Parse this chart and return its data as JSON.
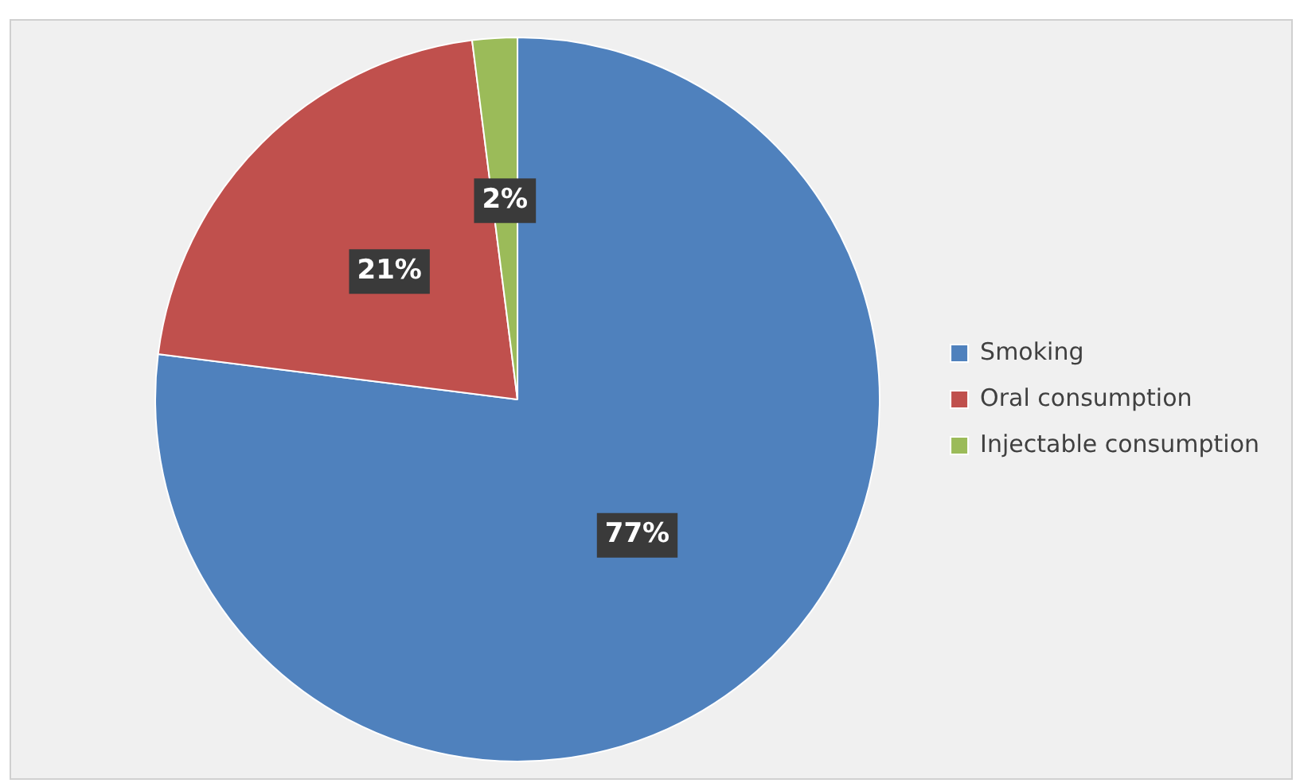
{
  "chart_data": {
    "type": "pie",
    "categories": [
      "Smoking",
      "Oral consumption",
      "Injectable consumption"
    ],
    "values": [
      77,
      21,
      2
    ],
    "colors": [
      "#4f81bd",
      "#c0504d",
      "#9bbb59"
    ],
    "value_labels": [
      "77%",
      "21%",
      "2%"
    ],
    "legend": "right"
  }
}
